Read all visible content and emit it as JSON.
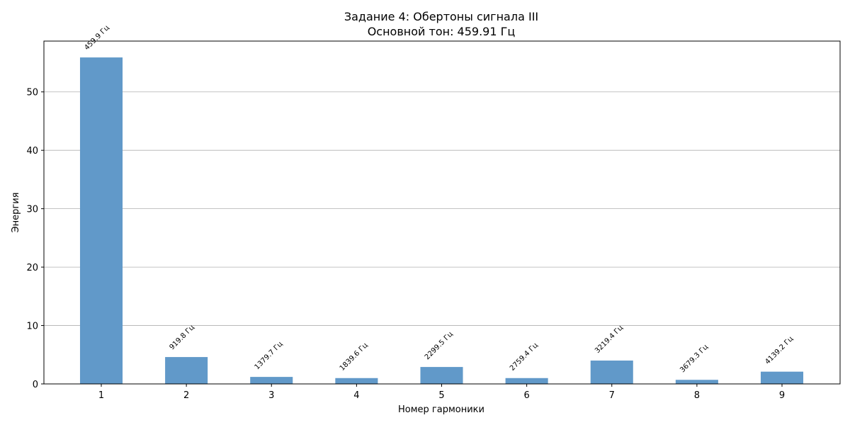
{
  "chart_data": {
    "type": "bar",
    "title": "Задание 4: Обертоны сигнала III",
    "subtitle": "Основной тон: 459.91 Гц",
    "xlabel": "Номер гармоники",
    "ylabel": "Энергия",
    "categories": [
      "1",
      "2",
      "3",
      "4",
      "5",
      "6",
      "7",
      "8",
      "9"
    ],
    "values": [
      55.9,
      4.6,
      1.2,
      1.0,
      2.9,
      1.0,
      4.0,
      0.7,
      2.1
    ],
    "bar_labels": [
      "459.9 Гц",
      "919.8 Гц",
      "1379.7 Гц",
      "1839.6 Гц",
      "2299.5 Гц",
      "2759.4 Гц",
      "3219.4 Гц",
      "3679.3 Гц",
      "4139.2 Гц"
    ],
    "ylim": [
      0,
      58.7
    ],
    "yticks": [
      0,
      10,
      20,
      30,
      40,
      50
    ],
    "grid": "y-major",
    "bar_color": "#6199c9",
    "grid_color": "#b0b0b0"
  }
}
